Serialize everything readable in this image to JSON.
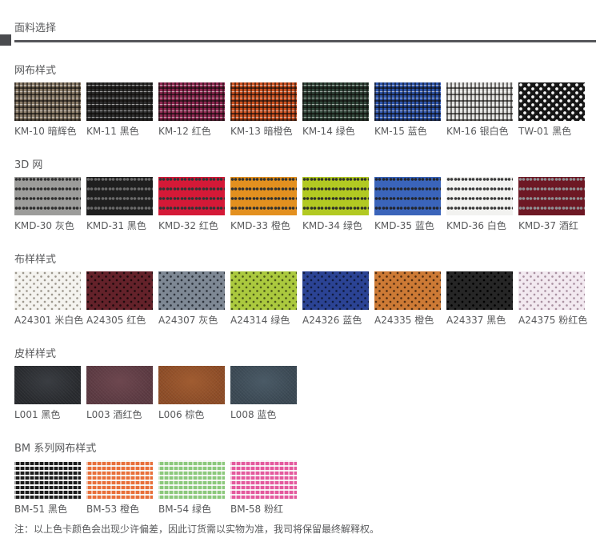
{
  "page": {
    "title": "面料选择",
    "note": "注：以上色卡颜色会出现少许偏差，因此订货需以实物为准，我司将保留最终解释权。"
  },
  "sections": [
    {
      "title": "网布样式",
      "pattern": "weave",
      "items": [
        {
          "label": "KM-10 暗辉色",
          "colors": {
            "c1": "#8a7b68",
            "c2": "#18120e",
            "c3": "#e9e4da"
          }
        },
        {
          "label": "KM-11 黑色",
          "colors": {
            "c1": "#2e2e2e",
            "c2": "#0b0b0b",
            "c3": "#e8e8e8"
          }
        },
        {
          "label": "KM-12 红色",
          "colors": {
            "c1": "#8e2750",
            "c2": "#140a10",
            "c3": "#e6dfe2"
          }
        },
        {
          "label": "KM-13 暗橙色",
          "colors": {
            "c1": "#cd5120",
            "c2": "#170d08",
            "c3": "#ece2d8"
          }
        },
        {
          "label": "KM-14 绿色",
          "colors": {
            "c1": "#31463a",
            "c2": "#0c120d",
            "c3": "#dfe6df"
          }
        },
        {
          "label": "KM-15 蓝色",
          "colors": {
            "c1": "#2e55ac",
            "c2": "#0a0f1c",
            "c3": "#dfe4ee"
          }
        },
        {
          "label": "KM-16 银白色",
          "colors": {
            "c1": "#dededc",
            "c2": "#3c3c3c",
            "c3": "#f7f7f5"
          }
        },
        {
          "label": "TW-01 黑色",
          "colors": {
            "c1": "#161616",
            "c2": "#000000",
            "c3": "#f5f5f5"
          }
        }
      ]
    },
    {
      "title": "3D 网",
      "pattern": "mesh3d",
      "items": [
        {
          "label": "KMD-30 灰色",
          "colors": {
            "c1": "#9c9c9a",
            "c2": "#2e2e2e"
          }
        },
        {
          "label": "KMD-31 黑色",
          "colors": {
            "c1": "#1f1f1f",
            "c2": "#6a6a6a"
          }
        },
        {
          "label": "KMD-32 红色",
          "colors": {
            "c1": "#d41937",
            "c2": "#303436"
          }
        },
        {
          "label": "KMD-33 橙色",
          "colors": {
            "c1": "#e3901f",
            "c2": "#33322e"
          }
        },
        {
          "label": "KMD-34 绿色",
          "colors": {
            "c1": "#b2c922",
            "c2": "#2f3328"
          }
        },
        {
          "label": "KMD-35 蓝色",
          "colors": {
            "c1": "#3a64ba",
            "c2": "#23262e"
          }
        },
        {
          "label": "KMD-36 白色",
          "colors": {
            "c1": "#f2f2f0",
            "c2": "#3a3a3a"
          }
        },
        {
          "label": "KMD-37 酒红",
          "colors": {
            "c1": "#6d1824",
            "c2": "#8f8f93"
          }
        }
      ]
    },
    {
      "title": "布样样式",
      "pattern": "perf",
      "items": [
        {
          "label": "A24301 米白色",
          "colors": {
            "c1": "#f4f3ef",
            "c2": "#9b968c"
          }
        },
        {
          "label": "A24305 红色",
          "colors": {
            "c1": "#64222a",
            "c2": "#1c090c"
          }
        },
        {
          "label": "A24307 灰色",
          "colors": {
            "c1": "#7e8894",
            "c2": "#2b313a"
          }
        },
        {
          "label": "A24314 绿色",
          "colors": {
            "c1": "#abc93e",
            "c2": "#49571a"
          }
        },
        {
          "label": "A24326 蓝色",
          "colors": {
            "c1": "#2b4394",
            "c2": "#101a3c"
          }
        },
        {
          "label": "A24335 橙色",
          "colors": {
            "c1": "#cd7a35",
            "c2": "#4e2c12"
          }
        },
        {
          "label": "A24337 黑色",
          "colors": {
            "c1": "#262626",
            "c2": "#000000"
          }
        },
        {
          "label": "A24375 粉红色",
          "colors": {
            "c1": "#f2e9f0",
            "c2": "#a88fa0"
          }
        }
      ]
    },
    {
      "title": "皮样样式",
      "pattern": "leather",
      "items": [
        {
          "label": "L001 黑色",
          "colors": {
            "c1": "#282a2e",
            "c2": "#3a3d42"
          }
        },
        {
          "label": "L003 酒红色",
          "colors": {
            "c1": "#5c3a42",
            "c2": "#6d474f"
          }
        },
        {
          "label": "L006 棕色",
          "colors": {
            "c1": "#8e4d27",
            "c2": "#a05c31"
          }
        },
        {
          "label": "L008 蓝色",
          "colors": {
            "c1": "#3b4954",
            "c2": "#4a5a66"
          }
        }
      ]
    },
    {
      "title": "BM 系列网布样式",
      "pattern": "check",
      "items": [
        {
          "label": "BM-51 黑色",
          "colors": {
            "c1": "#1c1c1c",
            "c2": "#f7f7f7"
          }
        },
        {
          "label": "BM-53 橙色",
          "colors": {
            "c1": "#e8703a",
            "c2": "#f6f3ee"
          }
        },
        {
          "label": "BM-54 绿色",
          "colors": {
            "c1": "#8cc87c",
            "c2": "#f3f6f0"
          }
        },
        {
          "label": "BM-58 粉红",
          "colors": {
            "c1": "#e45a9e",
            "c2": "#f6eff3"
          }
        }
      ]
    }
  ]
}
